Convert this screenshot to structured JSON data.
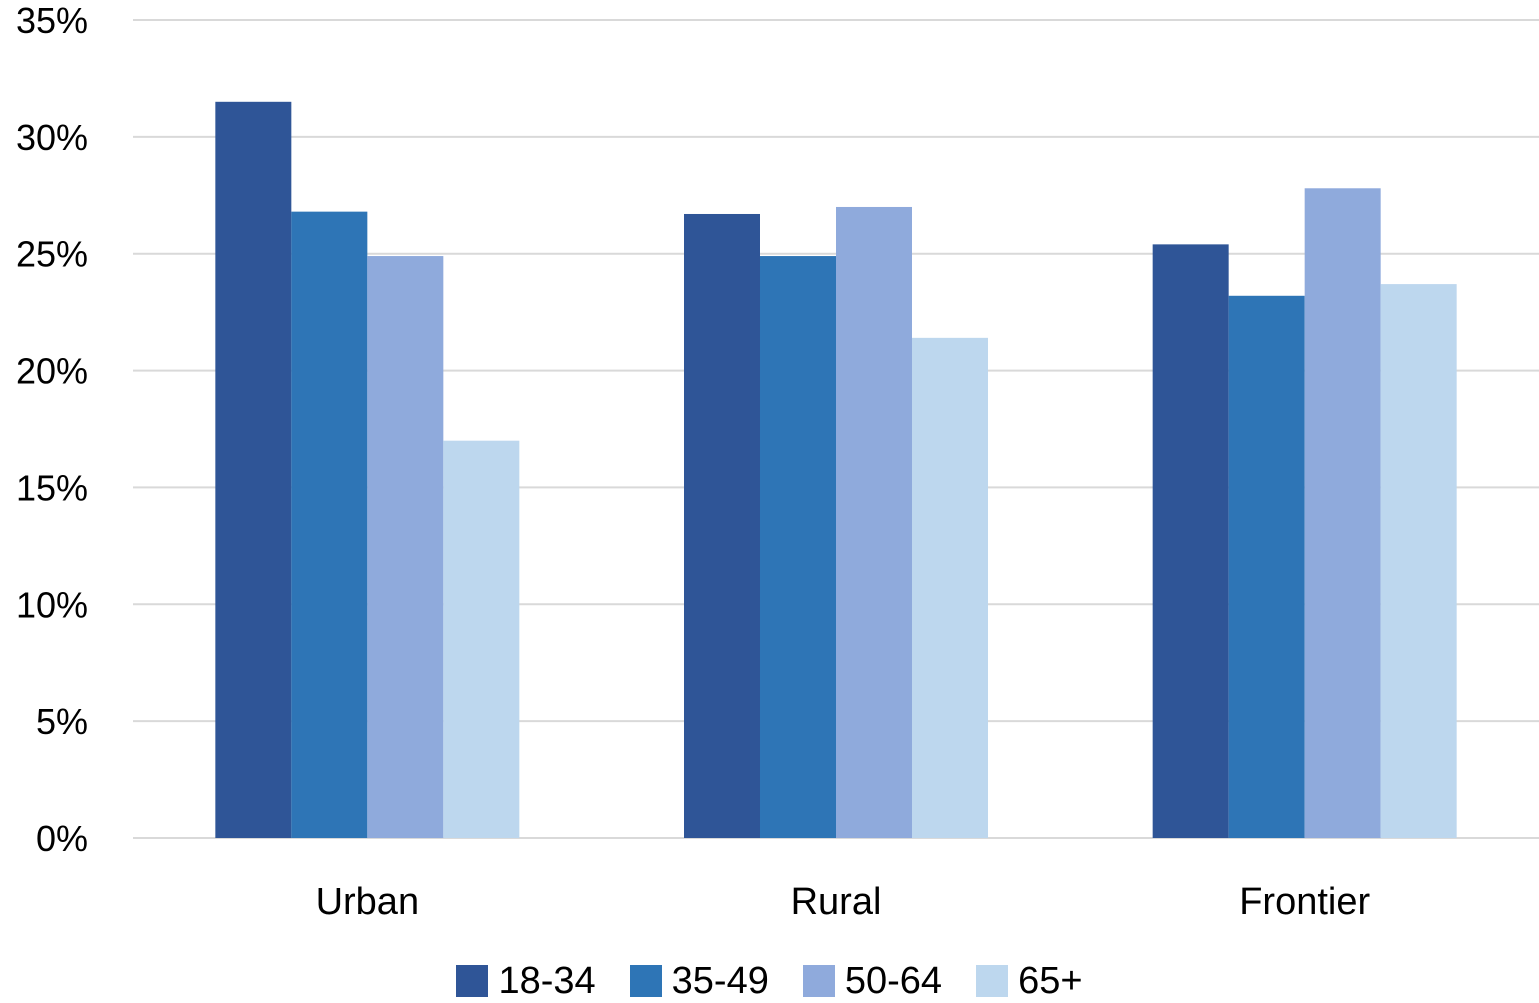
{
  "chart_data": {
    "type": "bar",
    "categories": [
      "Urban",
      "Rural",
      "Frontier"
    ],
    "series": [
      {
        "name": "18-34",
        "values": [
          31.5,
          26.7,
          25.4
        ],
        "color": "#2F5597"
      },
      {
        "name": "35-49",
        "values": [
          26.8,
          24.9,
          23.2
        ],
        "color": "#2E75B6"
      },
      {
        "name": "50-64",
        "values": [
          24.9,
          27.0,
          27.8
        ],
        "color": "#8FAADC"
      },
      {
        "name": "65+",
        "values": [
          17.0,
          21.4,
          23.7
        ],
        "color": "#BDD7EE"
      }
    ],
    "ylim": [
      0,
      35
    ],
    "yticks": [
      "0%",
      "5%",
      "10%",
      "15%",
      "20%",
      "25%",
      "30%",
      "35%"
    ],
    "ytick_values": [
      0,
      5,
      10,
      15,
      20,
      25,
      30,
      35
    ],
    "grid": true,
    "legend_position": "bottom",
    "title": "",
    "xlabel": "",
    "ylabel": ""
  }
}
